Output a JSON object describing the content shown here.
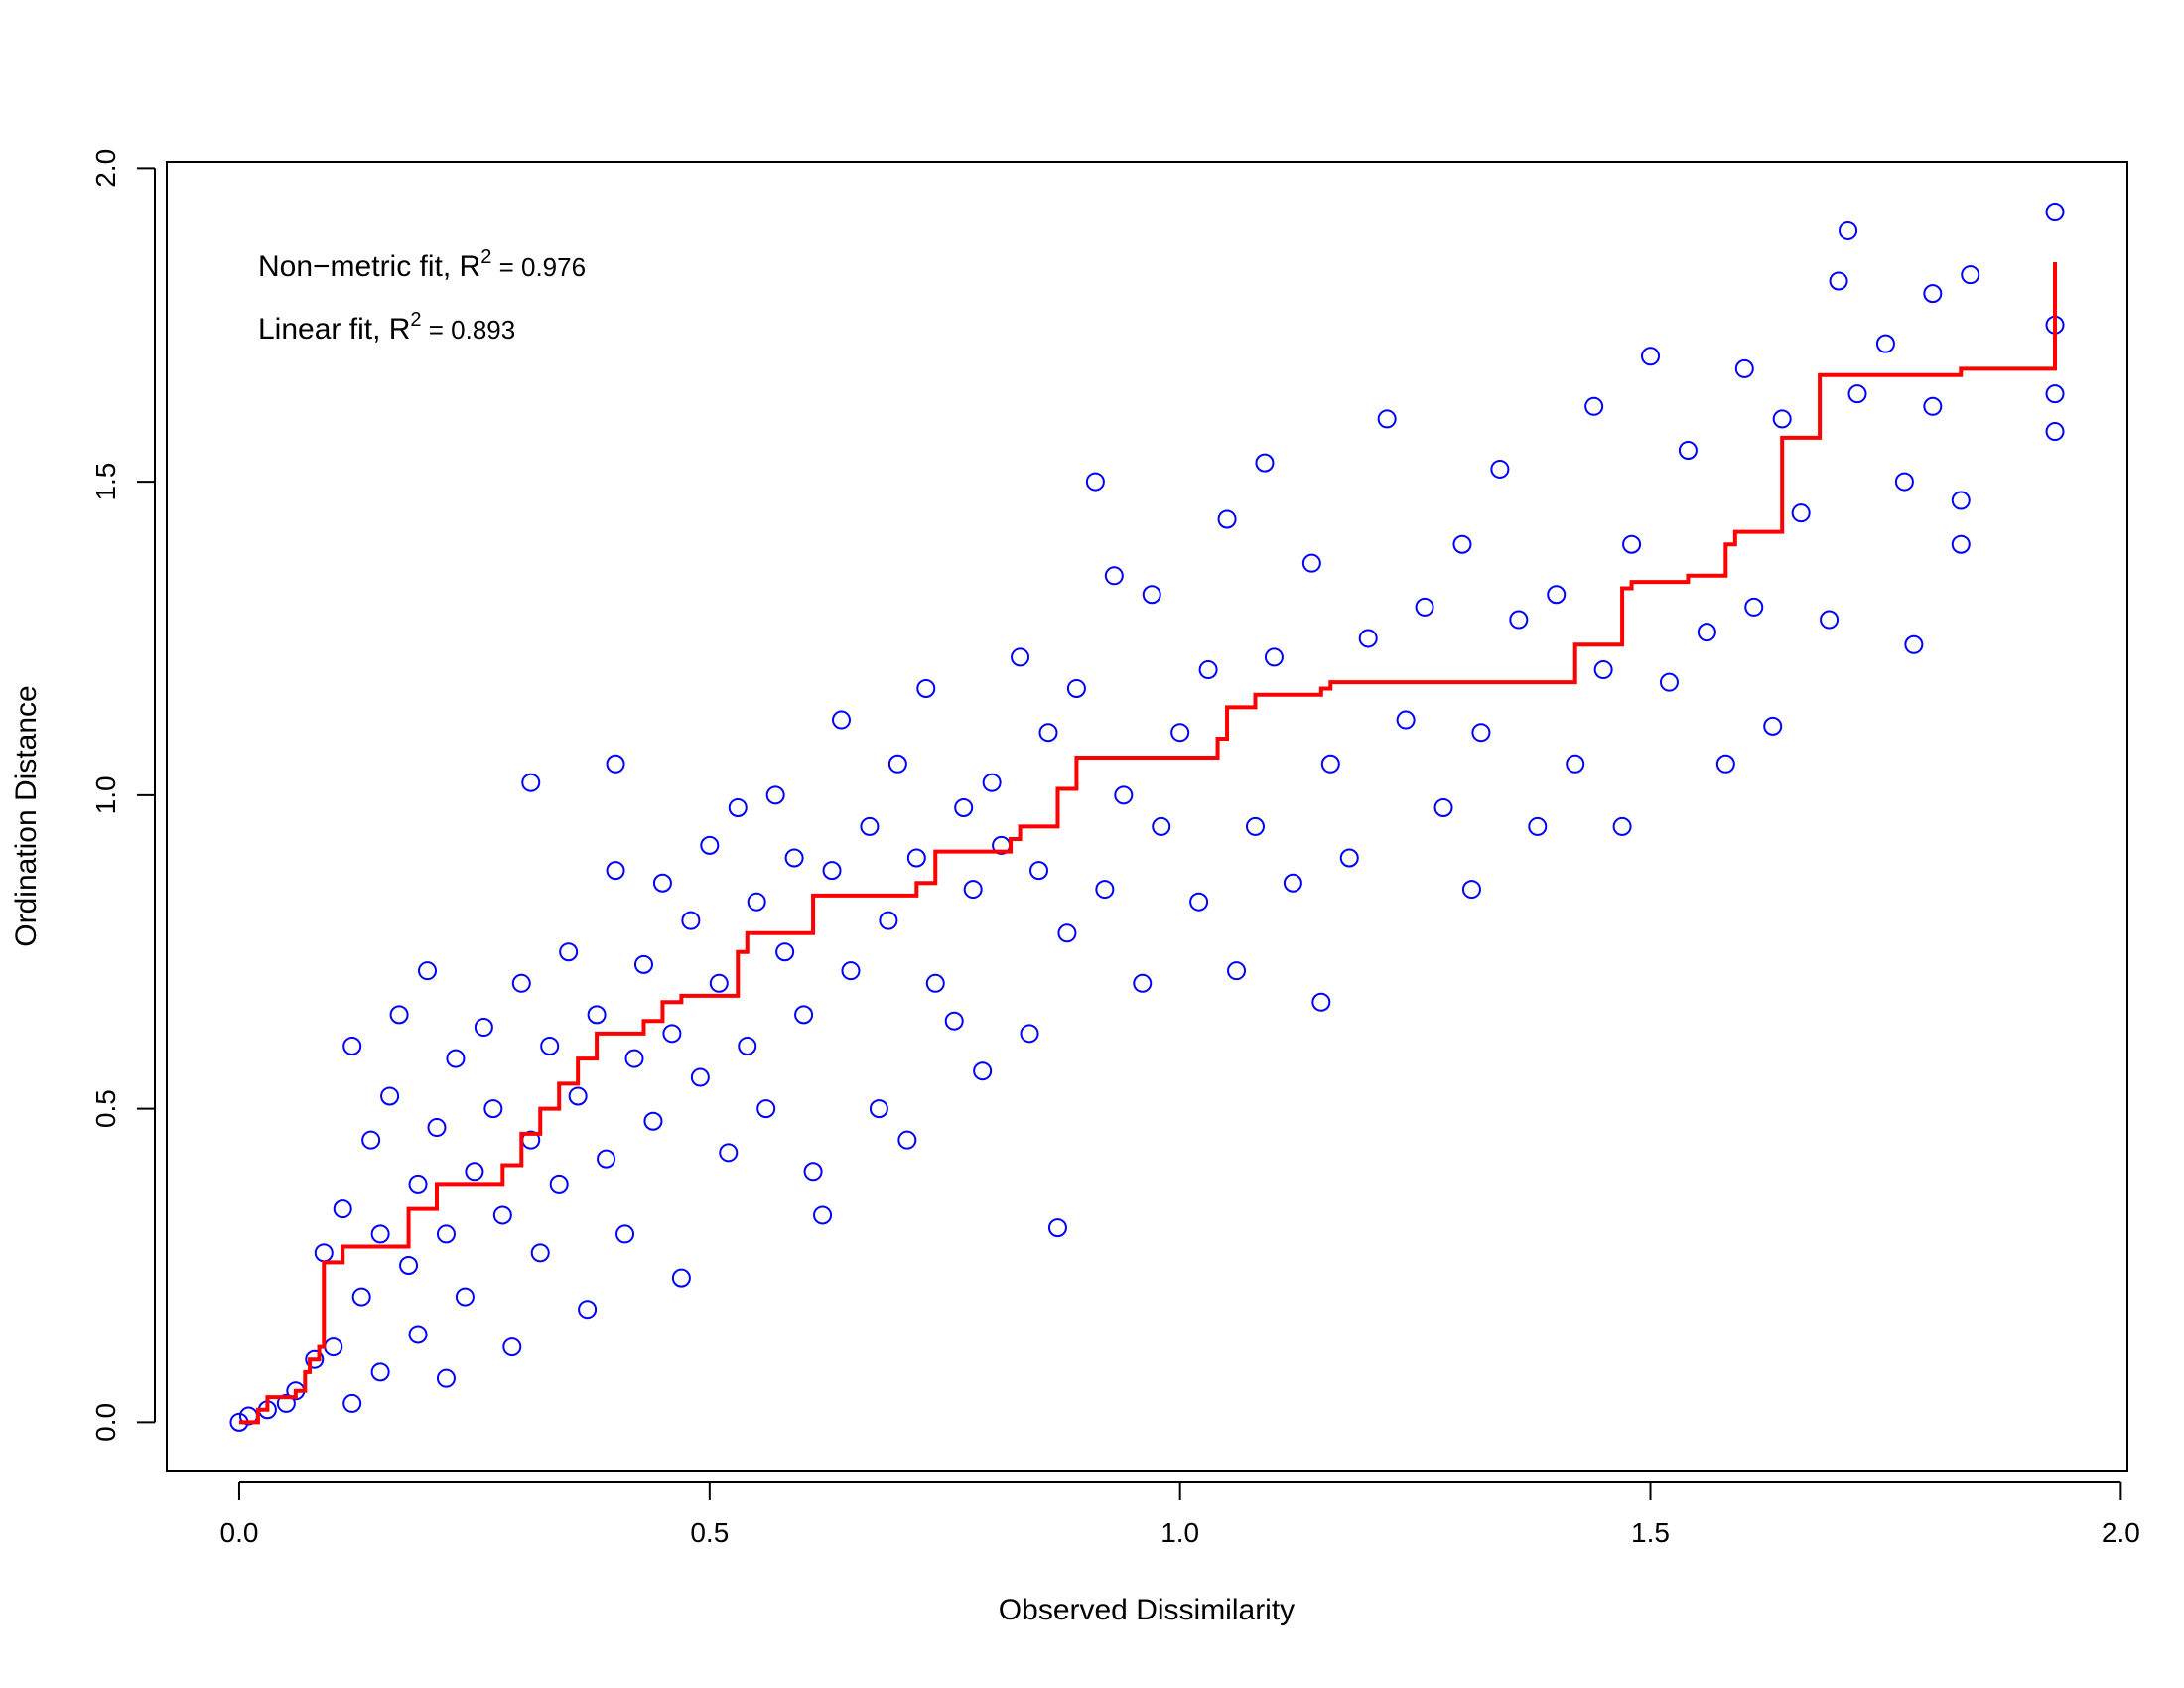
{
  "chart_data": {
    "type": "scatter",
    "x_label": "Observed Dissimilarity",
    "y_label": "Ordination Distance",
    "annotations": [
      {
        "text": "Non−metric fit, R",
        "superscript": "2",
        "suffix": " = 0.976"
      },
      {
        "text": "Linear fit, R",
        "superscript": "2",
        "suffix": " = 0.893"
      }
    ],
    "xlim": [
      -0.077,
      2.007
    ],
    "ylim": [
      -0.077,
      2.01
    ],
    "xticks": [
      {
        "value": 0,
        "label": "0.0"
      },
      {
        "value": 0.5,
        "label": "0.5"
      },
      {
        "value": 1,
        "label": "1.0"
      },
      {
        "value": 1.5,
        "label": "1.5"
      },
      {
        "value": 2,
        "label": "2.0"
      }
    ],
    "yticks": [
      {
        "value": 0,
        "label": "0.0"
      },
      {
        "value": 0.5,
        "label": "0.5"
      },
      {
        "value": 1,
        "label": "1.0"
      },
      {
        "value": 1.5,
        "label": "1.5"
      },
      {
        "value": 2,
        "label": "2.0"
      }
    ],
    "series": [
      {
        "type": "scatter",
        "color": "#0000ff",
        "x": [
          0.0,
          0.01,
          0.03,
          0.05,
          0.06,
          0.08,
          0.09,
          0.1,
          0.11,
          0.12,
          0.12,
          0.13,
          0.14,
          0.15,
          0.15,
          0.16,
          0.17,
          0.18,
          0.19,
          0.19,
          0.2,
          0.21,
          0.22,
          0.22,
          0.23,
          0.24,
          0.25,
          0.26,
          0.27,
          0.28,
          0.29,
          0.3,
          0.31,
          0.31,
          0.32,
          0.33,
          0.34,
          0.35,
          0.36,
          0.37,
          0.38,
          0.39,
          0.4,
          0.4,
          0.41,
          0.42,
          0.43,
          0.44,
          0.45,
          0.46,
          0.47,
          0.48,
          0.49,
          0.5,
          0.51,
          0.52,
          0.53,
          0.54,
          0.55,
          0.56,
          0.57,
          0.58,
          0.59,
          0.6,
          0.61,
          0.62,
          0.63,
          0.64,
          0.65,
          0.67,
          0.68,
          0.69,
          0.7,
          0.71,
          0.72,
          0.73,
          0.74,
          0.76,
          0.77,
          0.78,
          0.79,
          0.8,
          0.81,
          0.83,
          0.84,
          0.85,
          0.86,
          0.87,
          0.88,
          0.89,
          0.91,
          0.92,
          0.93,
          0.94,
          0.96,
          0.97,
          0.98,
          1.0,
          1.02,
          1.03,
          1.05,
          1.06,
          1.08,
          1.09,
          1.1,
          1.12,
          1.14,
          1.15,
          1.16,
          1.18,
          1.2,
          1.22,
          1.24,
          1.26,
          1.28,
          1.3,
          1.31,
          1.32,
          1.34,
          1.36,
          1.38,
          1.4,
          1.42,
          1.44,
          1.45,
          1.47,
          1.48,
          1.5,
          1.52,
          1.54,
          1.56,
          1.58,
          1.6,
          1.61,
          1.63,
          1.64,
          1.66,
          1.69,
          1.7,
          1.71,
          1.72,
          1.75,
          1.77,
          1.78,
          1.8,
          1.8,
          1.83,
          1.83,
          1.84,
          1.93,
          1.93,
          1.93,
          1.93
        ],
        "values": [
          0.0,
          0.01,
          0.02,
          0.03,
          0.05,
          0.1,
          0.27,
          0.12,
          0.34,
          0.6,
          0.03,
          0.2,
          0.45,
          0.3,
          0.08,
          0.52,
          0.65,
          0.25,
          0.38,
          0.14,
          0.72,
          0.47,
          0.3,
          0.07,
          0.58,
          0.2,
          0.4,
          0.63,
          0.5,
          0.33,
          0.12,
          0.7,
          1.02,
          0.45,
          0.27,
          0.6,
          0.38,
          0.75,
          0.52,
          0.18,
          0.65,
          0.42,
          1.05,
          0.88,
          0.3,
          0.58,
          0.73,
          0.48,
          0.86,
          0.62,
          0.23,
          0.8,
          0.55,
          0.92,
          0.7,
          0.43,
          0.98,
          0.6,
          0.83,
          0.5,
          1.0,
          0.75,
          0.9,
          0.65,
          0.4,
          0.33,
          0.88,
          1.12,
          0.72,
          0.95,
          0.5,
          0.8,
          1.05,
          0.45,
          0.9,
          1.17,
          0.7,
          0.64,
          0.98,
          0.85,
          0.56,
          1.02,
          0.92,
          1.22,
          0.62,
          0.88,
          1.1,
          0.31,
          0.78,
          1.17,
          1.5,
          0.85,
          1.35,
          1.0,
          0.7,
          1.32,
          0.95,
          1.1,
          0.83,
          1.2,
          1.44,
          0.72,
          0.95,
          1.53,
          1.22,
          0.86,
          1.37,
          0.67,
          1.05,
          0.9,
          1.25,
          1.6,
          1.12,
          1.3,
          0.98,
          1.4,
          0.85,
          1.1,
          1.52,
          1.28,
          0.95,
          1.32,
          1.05,
          1.62,
          1.2,
          0.95,
          1.4,
          1.7,
          1.18,
          1.55,
          1.26,
          1.05,
          1.68,
          1.3,
          1.11,
          1.6,
          1.45,
          1.28,
          1.82,
          1.9,
          1.64,
          1.72,
          1.5,
          1.24,
          1.8,
          1.62,
          1.47,
          1.4,
          1.83,
          1.93,
          1.75,
          1.64,
          1.58
        ]
      },
      {
        "type": "step",
        "color": "#ff0000",
        "x": [
          0.0,
          0.02,
          0.03,
          0.06,
          0.07,
          0.075,
          0.085,
          0.09,
          0.11,
          0.18,
          0.21,
          0.28,
          0.3,
          0.32,
          0.34,
          0.36,
          0.38,
          0.43,
          0.45,
          0.47,
          0.53,
          0.54,
          0.61,
          0.72,
          0.74,
          0.82,
          0.83,
          0.87,
          0.89,
          1.04,
          1.05,
          1.08,
          1.15,
          1.16,
          1.42,
          1.47,
          1.48,
          1.54,
          1.58,
          1.59,
          1.64,
          1.68,
          1.83,
          1.93,
          1.93
        ],
        "values": [
          0.0,
          0.02,
          0.04,
          0.05,
          0.08,
          0.1,
          0.12,
          0.255,
          0.28,
          0.34,
          0.38,
          0.41,
          0.46,
          0.5,
          0.54,
          0.58,
          0.62,
          0.64,
          0.67,
          0.68,
          0.75,
          0.78,
          0.84,
          0.86,
          0.91,
          0.93,
          0.95,
          1.01,
          1.06,
          1.09,
          1.14,
          1.16,
          1.17,
          1.18,
          1.24,
          1.33,
          1.34,
          1.35,
          1.4,
          1.42,
          1.57,
          1.67,
          1.68,
          1.68,
          1.85
        ]
      }
    ]
  }
}
